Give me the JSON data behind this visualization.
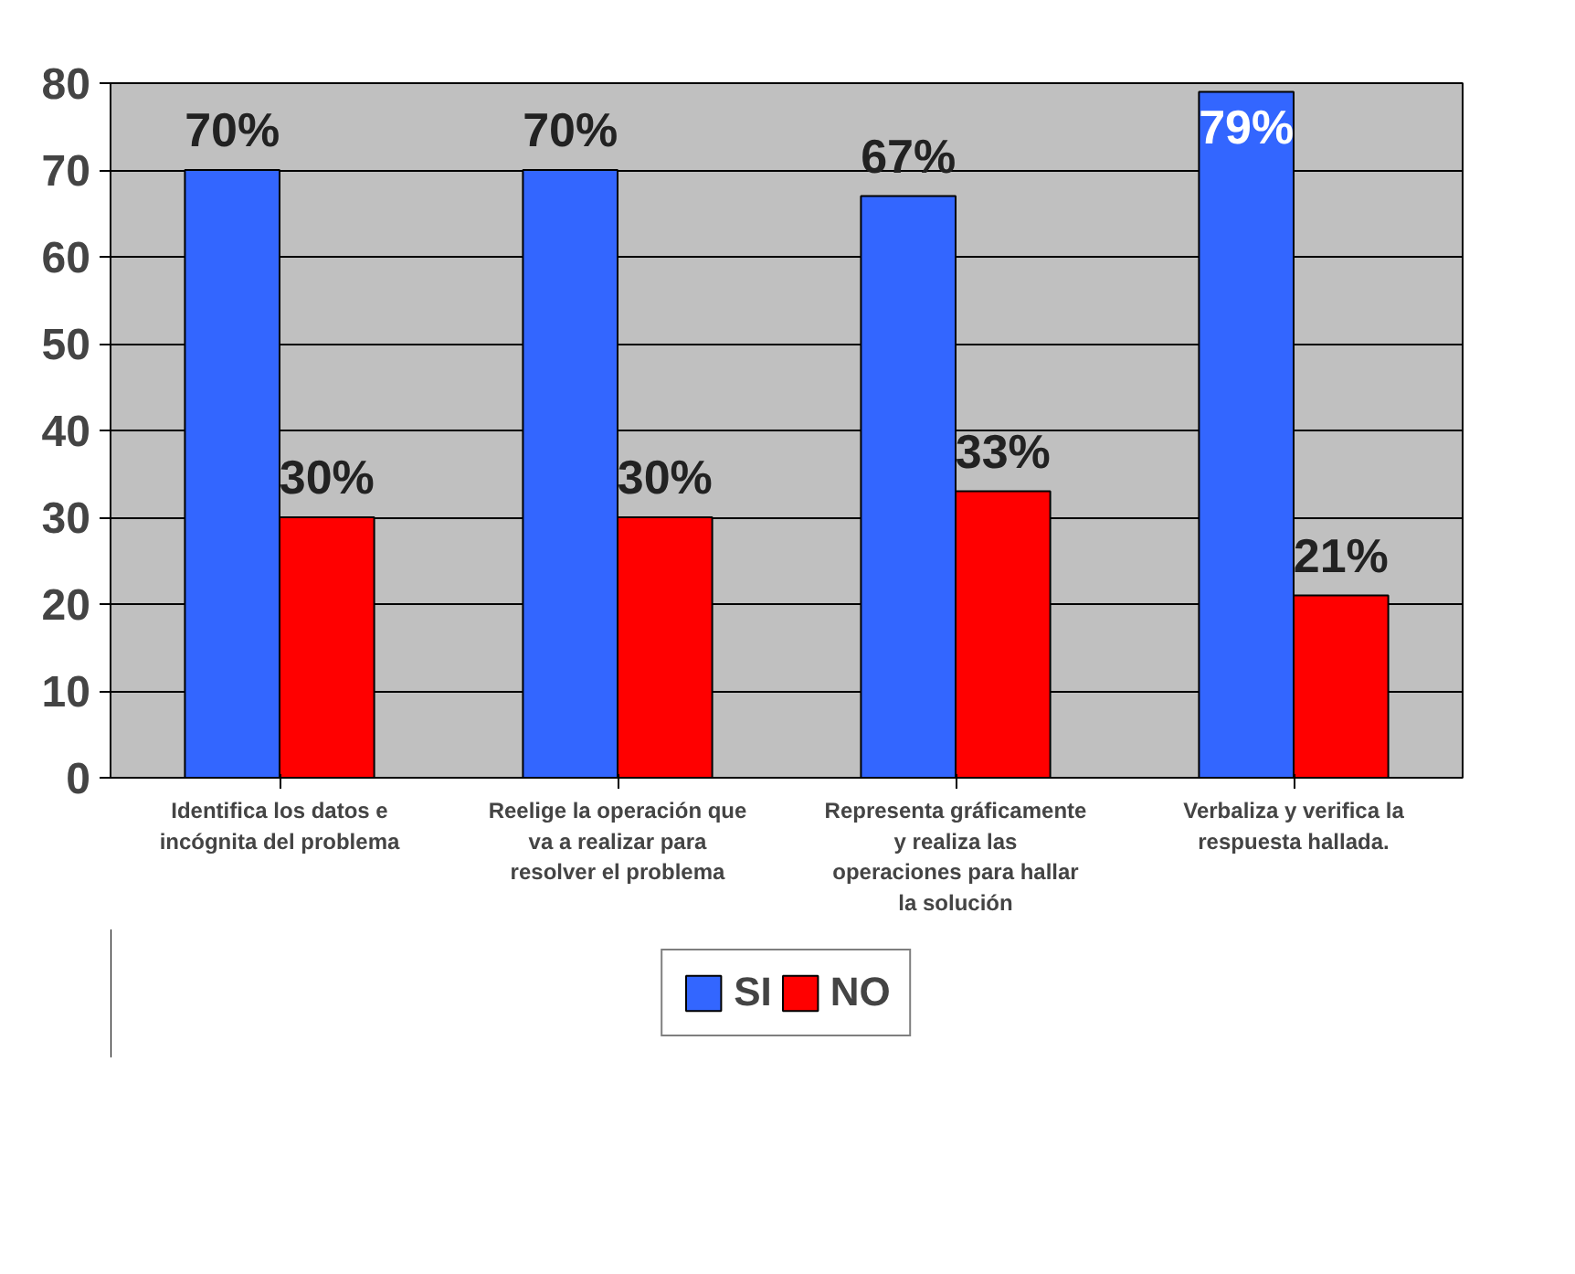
{
  "chart_data": {
    "type": "bar",
    "categories": [
      "Identifica los datos e incógnita del problema",
      "Reelige la operación que va a realizar para resolver el problema",
      "Representa gráficamente y realiza las operaciones para hallar la solución",
      "Verbaliza y verifica la respuesta hallada."
    ],
    "series": [
      {
        "name": "SI",
        "color": "#3366ff",
        "values": [
          70,
          70,
          67,
          79
        ],
        "value_labels": [
          "70%",
          "70%",
          "67%",
          "79%"
        ]
      },
      {
        "name": "NO",
        "color": "#ff0000",
        "values": [
          30,
          30,
          33,
          21
        ],
        "value_labels": [
          "30%",
          "30%",
          "33%",
          "21%"
        ]
      }
    ],
    "ylim": [
      0,
      80
    ],
    "yticks": [
      0,
      10,
      20,
      30,
      40,
      50,
      60,
      70,
      80
    ],
    "grid": "y",
    "legend": "bottom"
  }
}
